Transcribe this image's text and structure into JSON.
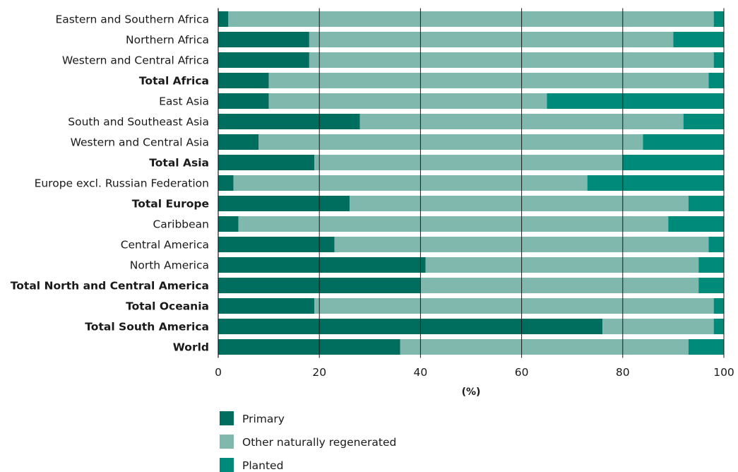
{
  "chart_data": {
    "type": "bar",
    "orientation": "horizontal",
    "stacked": true,
    "title": "",
    "xlabel": "(%)",
    "ylabel": "",
    "xlim": [
      0,
      100
    ],
    "xticks": [
      "0",
      "20",
      "40",
      "60",
      "80",
      "100"
    ],
    "grid": "vertical",
    "legend_position": "bottom",
    "categories": [
      "Eastern and Southern Africa",
      "Northern Africa",
      "Western and Central Africa",
      "Total Africa",
      "East Asia",
      "South and Southeast Asia",
      "Western and Central Asia",
      "Total Asia",
      "Europe excl. Russian Federation",
      "Total Europe",
      "Caribbean",
      "Central America",
      "North America",
      "Total North and Central America",
      "Total Oceania",
      "Total South America",
      "World"
    ],
    "bold_categories": [
      "Total Africa",
      "Total Asia",
      "Total Europe",
      "Total North and Central America",
      "Total Oceania",
      "Total South America",
      "World"
    ],
    "series": [
      {
        "name": "Primary",
        "color": "#006e5e",
        "values": [
          2,
          18,
          18,
          10,
          10,
          28,
          8,
          19,
          3,
          26,
          4,
          23,
          41,
          40,
          19,
          76,
          36
        ]
      },
      {
        "name": "Other naturally regenerated",
        "color": "#80b8ad",
        "values": [
          96,
          72,
          80,
          87,
          55,
          64,
          76,
          61,
          70,
          67,
          85,
          74,
          54,
          55,
          79,
          22,
          57
        ]
      },
      {
        "name": "Planted",
        "color": "#008a7a",
        "values": [
          2,
          10,
          2,
          3,
          35,
          8,
          16,
          20,
          27,
          7,
          11,
          3,
          5,
          5,
          2,
          2,
          7
        ]
      }
    ]
  }
}
